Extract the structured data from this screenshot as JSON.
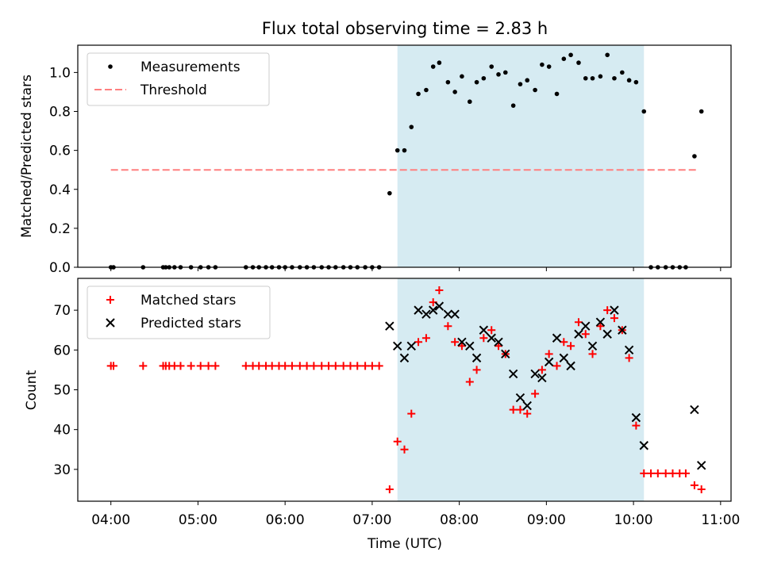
{
  "chart_data": [
    {
      "type": "scatter",
      "title": "Flux total observing time = 2.83 h",
      "ylabel": "Matched/Predicted stars",
      "ylim": [
        0,
        1.14
      ],
      "yticks": [
        "0.0",
        "0.2",
        "0.4",
        "0.6",
        "0.8",
        "1.0"
      ],
      "xlim_hours": [
        3.62,
        11.12
      ],
      "shaded_range_hours": [
        7.29,
        10.12
      ],
      "threshold": {
        "value": 0.5,
        "x_start": 4.0,
        "x_end": 10.75,
        "color": "#ff7f7f"
      },
      "legend": {
        "placement": "top-left",
        "entries": [
          "Measurements",
          "Threshold"
        ]
      },
      "series": [
        {
          "name": "Measurements",
          "x": [
            4.0,
            4.03,
            4.37,
            4.6,
            4.63,
            4.67,
            4.73,
            4.8,
            4.92,
            5.03,
            5.12,
            5.2,
            5.55,
            5.63,
            5.7,
            5.78,
            5.85,
            5.93,
            6.0,
            6.08,
            6.17,
            6.25,
            6.33,
            6.42,
            6.5,
            6.58,
            6.67,
            6.75,
            6.83,
            6.92,
            7.0,
            7.08,
            7.2,
            7.29,
            7.37,
            7.45,
            7.53,
            7.62,
            7.7,
            7.77,
            7.87,
            7.95,
            8.03,
            8.12,
            8.2,
            8.28,
            8.37,
            8.45,
            8.53,
            8.62,
            8.7,
            8.78,
            8.87,
            8.95,
            9.03,
            9.12,
            9.2,
            9.28,
            9.37,
            9.45,
            9.53,
            9.62,
            9.7,
            9.78,
            9.87,
            9.95,
            10.03,
            10.12,
            10.2,
            10.28,
            10.37,
            10.45,
            10.53,
            10.6,
            10.7,
            10.78
          ],
          "values": [
            0,
            0,
            0,
            0,
            0,
            0,
            0,
            0,
            0,
            0,
            0,
            0,
            0,
            0,
            0,
            0,
            0,
            0,
            0,
            0,
            0,
            0,
            0,
            0,
            0,
            0,
            0,
            0,
            0,
            0,
            0,
            0,
            0.38,
            0.6,
            0.6,
            0.72,
            0.89,
            0.91,
            1.03,
            1.05,
            0.95,
            0.9,
            0.98,
            0.85,
            0.95,
            0.97,
            1.03,
            0.99,
            1.0,
            0.83,
            0.94,
            0.96,
            0.91,
            1.04,
            1.03,
            0.89,
            1.07,
            1.09,
            1.05,
            0.97,
            0.97,
            0.98,
            1.09,
            0.97,
            1.0,
            0.96,
            0.95,
            0.8,
            0,
            0,
            0,
            0,
            0,
            0,
            0.57,
            0.8
          ]
        }
      ]
    },
    {
      "type": "scatter",
      "xlabel": "Time (UTC)",
      "ylabel": "Count",
      "ylim": [
        22,
        78
      ],
      "yticks": [
        "30",
        "40",
        "50",
        "60",
        "70"
      ],
      "xticks": [
        "04:00",
        "05:00",
        "06:00",
        "07:00",
        "08:00",
        "09:00",
        "10:00",
        "11:00"
      ],
      "xlim_hours": [
        3.62,
        11.12
      ],
      "shaded_range_hours": [
        7.29,
        10.12
      ],
      "legend": {
        "placement": "top-left",
        "entries": [
          "Matched stars",
          "Predicted stars"
        ]
      },
      "series": [
        {
          "name": "Matched stars",
          "marker": "+",
          "color": "#ff0000",
          "x": [
            4.0,
            4.03,
            4.37,
            4.6,
            4.63,
            4.67,
            4.73,
            4.8,
            4.92,
            5.03,
            5.12,
            5.2,
            5.55,
            5.63,
            5.7,
            5.78,
            5.85,
            5.93,
            6.0,
            6.08,
            6.17,
            6.25,
            6.33,
            6.42,
            6.5,
            6.58,
            6.67,
            6.75,
            6.83,
            6.92,
            7.0,
            7.08,
            7.2,
            7.29,
            7.37,
            7.45,
            7.53,
            7.62,
            7.7,
            7.77,
            7.87,
            7.95,
            8.03,
            8.12,
            8.2,
            8.28,
            8.37,
            8.45,
            8.53,
            8.62,
            8.7,
            8.78,
            8.87,
            8.95,
            9.03,
            9.12,
            9.2,
            9.28,
            9.37,
            9.45,
            9.53,
            9.62,
            9.7,
            9.78,
            9.87,
            9.95,
            10.03,
            10.12,
            10.2,
            10.28,
            10.37,
            10.45,
            10.53,
            10.6,
            10.7,
            10.78
          ],
          "values": [
            56,
            56,
            56,
            56,
            56,
            56,
            56,
            56,
            56,
            56,
            56,
            56,
            56,
            56,
            56,
            56,
            56,
            56,
            56,
            56,
            56,
            56,
            56,
            56,
            56,
            56,
            56,
            56,
            56,
            56,
            56,
            56,
            25,
            37,
            35,
            44,
            62,
            63,
            72,
            75,
            66,
            62,
            61,
            52,
            55,
            63,
            65,
            61,
            59,
            45,
            45,
            44,
            49,
            55,
            59,
            56,
            62,
            61,
            67,
            64,
            59,
            66,
            70,
            68,
            65,
            58,
            41,
            29,
            29,
            29,
            29,
            29,
            29,
            29,
            26,
            25
          ]
        },
        {
          "name": "Predicted stars",
          "marker": "x",
          "color": "#000000",
          "x": [
            7.2,
            7.29,
            7.37,
            7.45,
            7.53,
            7.62,
            7.7,
            7.77,
            7.87,
            7.95,
            8.03,
            8.12,
            8.2,
            8.28,
            8.37,
            8.45,
            8.53,
            8.62,
            8.7,
            8.78,
            8.87,
            8.95,
            9.03,
            9.12,
            9.2,
            9.28,
            9.37,
            9.45,
            9.53,
            9.62,
            9.7,
            9.78,
            9.87,
            9.95,
            10.03,
            10.12,
            10.7,
            10.78
          ],
          "values": [
            66,
            61,
            58,
            61,
            70,
            69,
            70,
            71,
            69,
            69,
            62,
            61,
            58,
            65,
            63,
            62,
            59,
            54,
            48,
            46,
            54,
            53,
            57,
            63,
            58,
            56,
            64,
            66,
            61,
            67,
            64,
            70,
            65,
            60,
            43,
            36,
            45,
            31
          ]
        }
      ]
    }
  ]
}
